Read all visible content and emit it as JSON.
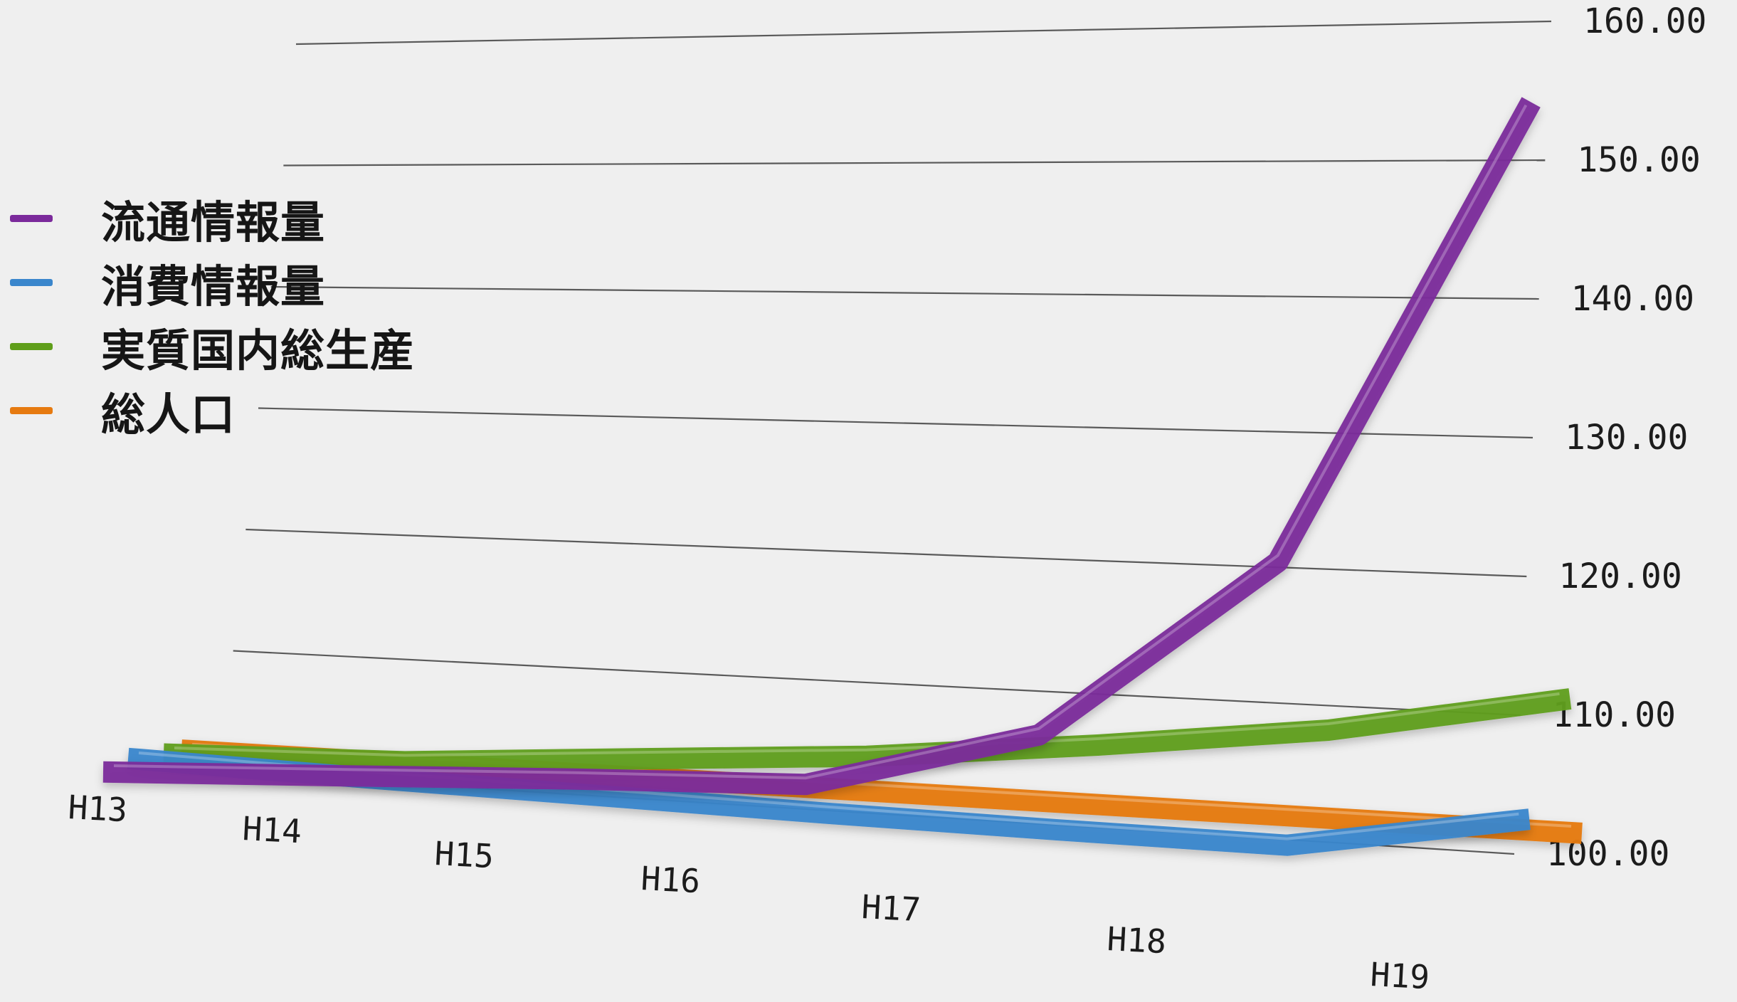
{
  "chart_data": {
    "type": "line",
    "title": "",
    "xlabel": "",
    "ylabel": "",
    "categories": [
      "H13",
      "H14",
      "H15",
      "H16",
      "H17",
      "H18",
      "H19"
    ],
    "y_ticks": [
      "100.00",
      "110.00",
      "120.00",
      "130.00",
      "140.00",
      "150.00",
      "160.00"
    ],
    "ylim": [
      100,
      160
    ],
    "grid": true,
    "legend_position": "left",
    "series": [
      {
        "name": "流通情報量",
        "color": "#7b2a9b",
        "values": [
          100,
          100.8,
          101.6,
          102.2,
          106.9,
          120.5,
          153.5
        ]
      },
      {
        "name": "消費情報量",
        "color": "#3a86cc",
        "values": [
          100,
          99.6,
          99.3,
          99.0,
          98.8,
          98.7,
          101.5
        ]
      },
      {
        "name": "実質国内総生産",
        "color": "#5f9e1a",
        "values": [
          100,
          100.5,
          101.8,
          103.0,
          104.8,
          106.8,
          109.8
        ]
      },
      {
        "name": "総人口",
        "color": "#e67a10",
        "values": [
          100,
          100.0,
          100.0,
          100.0,
          100.0,
          100.0,
          100.0
        ]
      }
    ]
  }
}
